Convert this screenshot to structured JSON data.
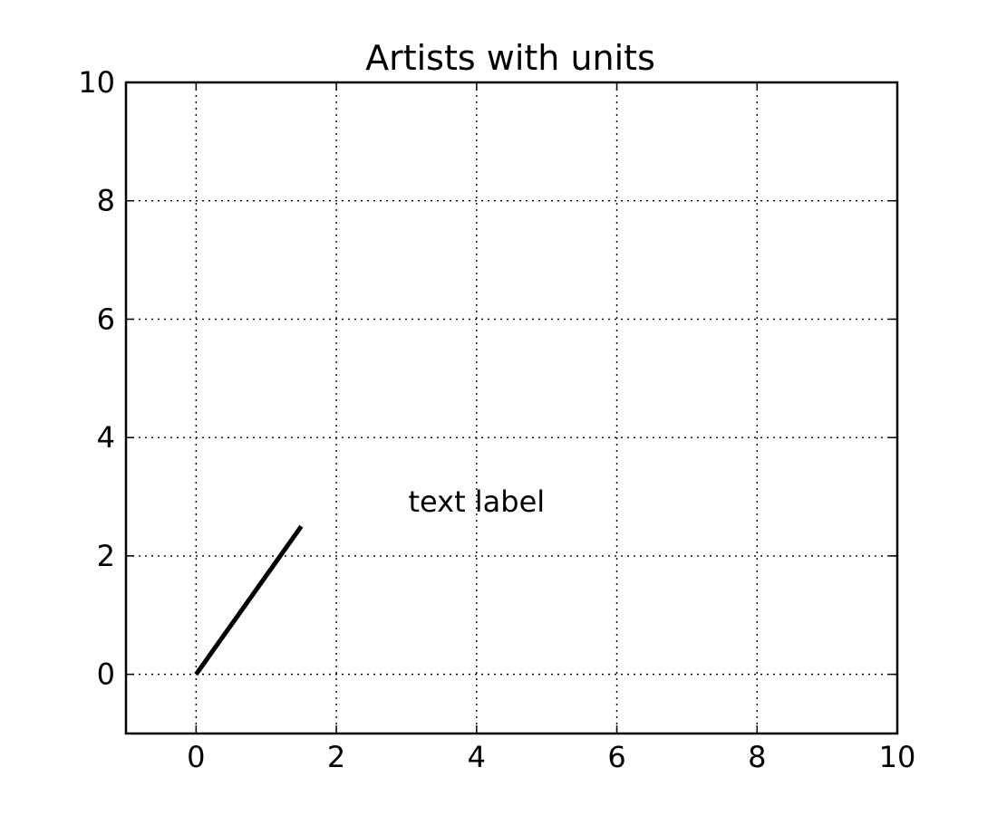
{
  "chart_data": {
    "type": "line",
    "title": "Artists with units",
    "xlabel": "",
    "ylabel": "",
    "xlim": [
      -1,
      10
    ],
    "ylim": [
      -1,
      10
    ],
    "x_ticks": [
      0,
      2,
      4,
      6,
      8,
      10
    ],
    "y_ticks": [
      0,
      2,
      4,
      6,
      8,
      10
    ],
    "x_tick_labels": [
      "0",
      "2",
      "4",
      "6",
      "8",
      "10"
    ],
    "y_tick_labels": [
      "0",
      "2",
      "4",
      "6",
      "8",
      "10"
    ],
    "grid": true,
    "grid_style": "dotted",
    "series": [
      {
        "x": [
          0,
          1.5
        ],
        "y": [
          0,
          2.5
        ],
        "color": "#000000"
      }
    ],
    "annotations": [
      {
        "text": "text label",
        "x": 4,
        "y": 2.75
      }
    ]
  },
  "colors": {
    "line": "#000000",
    "axes": "#000000",
    "grid": "#000000",
    "background": "#ffffff"
  }
}
